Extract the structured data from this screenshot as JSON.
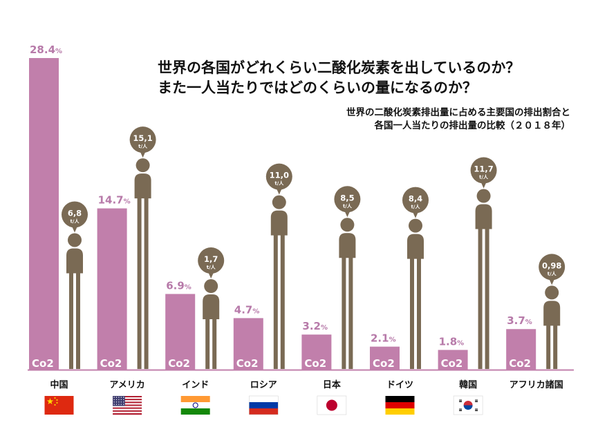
{
  "title": {
    "line1": "世界の各国がどれくらい二酸化炭素を出しているのか？",
    "line2": "また一人当たりではどのくらいの量になるのか？"
  },
  "subtitle": {
    "line1": "世界の二酸化炭素排出量に占める主要国の排出割合と",
    "line2": "各国一人当たりの排出量の比較（２０１８年）"
  },
  "colors": {
    "bar": "#c17fab",
    "pct_text": "#b77aa9",
    "person": "#7a6a54",
    "baseline": "#c17fab"
  },
  "chart_data": {
    "type": "bar",
    "categories": [
      "中国",
      "アメリカ",
      "インド",
      "ロシア",
      "日本",
      "ドイツ",
      "韓国",
      "アフリカ諸国"
    ],
    "share_percent": [
      28.4,
      14.7,
      6.9,
      4.7,
      3.2,
      2.1,
      1.8,
      3.7
    ],
    "share_labels": [
      "28.4",
      "14.7",
      "6.9",
      "4.7",
      "3.2",
      "2.1",
      "1.8",
      "3.7"
    ],
    "share_unit": "%",
    "bar_tag": "Co2",
    "per_capita": [
      6.8,
      15.1,
      1.7,
      11.0,
      8.5,
      8.4,
      11.7,
      0.98
    ],
    "per_capita_labels": [
      "6,8",
      "15,1",
      "1,7",
      "11,0",
      "8,5",
      "8,4",
      "11,7",
      "0,98"
    ],
    "per_capita_unit": "t/人"
  },
  "flags": [
    "china-flag-icon",
    "usa-flag-icon",
    "india-flag-icon",
    "russia-flag-icon",
    "japan-flag-icon",
    "germany-flag-icon",
    "south-korea-flag-icon",
    "africa-flag-icon"
  ]
}
